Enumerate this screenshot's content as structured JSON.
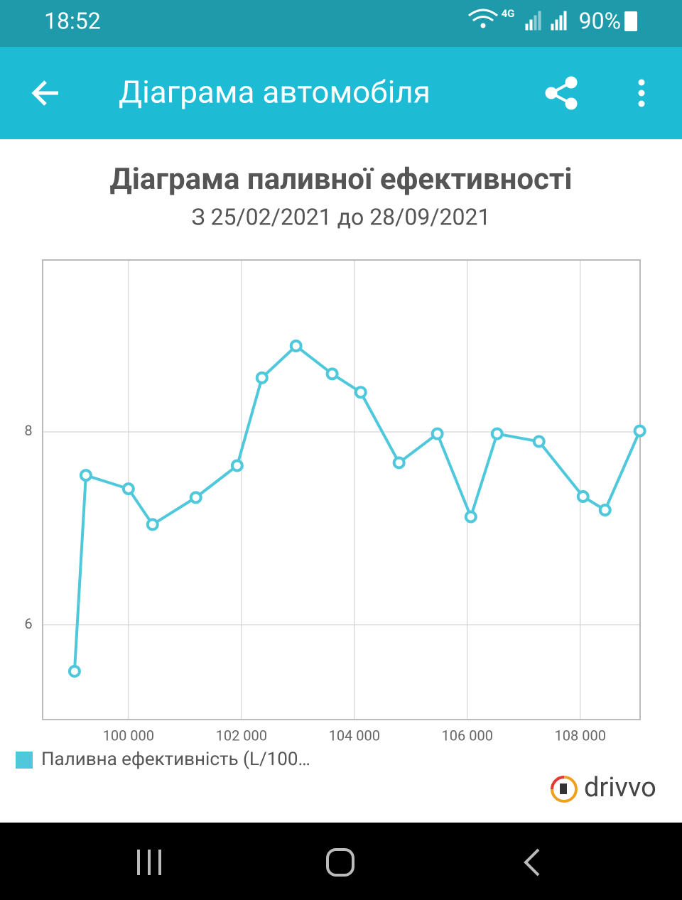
{
  "status_bar": {
    "time": "18:52",
    "network": "4G",
    "battery": "90%"
  },
  "app_bar": {
    "title": "Діаграма автомобіля"
  },
  "chart_data": {
    "type": "line",
    "title": "Діаграма паливної ефективності",
    "subtitle": "З 25/02/2021 до 28/09/2021",
    "x": [
      99045,
      99246,
      100000,
      100427,
      101193,
      101925,
      102364,
      102967,
      103608,
      104113,
      104791,
      105470,
      106063,
      106528,
      107270,
      108050,
      108440,
      109055
    ],
    "series": [
      {
        "name": "Паливна ефективність (L/100…",
        "color": "#4fc8dc",
        "values": [
          5.52,
          7.55,
          7.41,
          7.04,
          7.32,
          7.65,
          8.56,
          8.89,
          8.6,
          8.41,
          7.68,
          7.98,
          7.12,
          7.98,
          7.9,
          7.33,
          7.19,
          8.01
        ]
      }
    ],
    "xlim": [
      98480,
      109060
    ],
    "ylim": [
      5.02,
      9.78
    ],
    "xticks": [
      {
        "value": 100000,
        "label": "100 000"
      },
      {
        "value": 102000,
        "label": "102 000"
      },
      {
        "value": 104000,
        "label": "104 000"
      },
      {
        "value": 106000,
        "label": "106 000"
      },
      {
        "value": 108000,
        "label": "108 000"
      }
    ],
    "yticks": [
      6,
      8
    ],
    "grid": true
  },
  "branding": "drivvo"
}
